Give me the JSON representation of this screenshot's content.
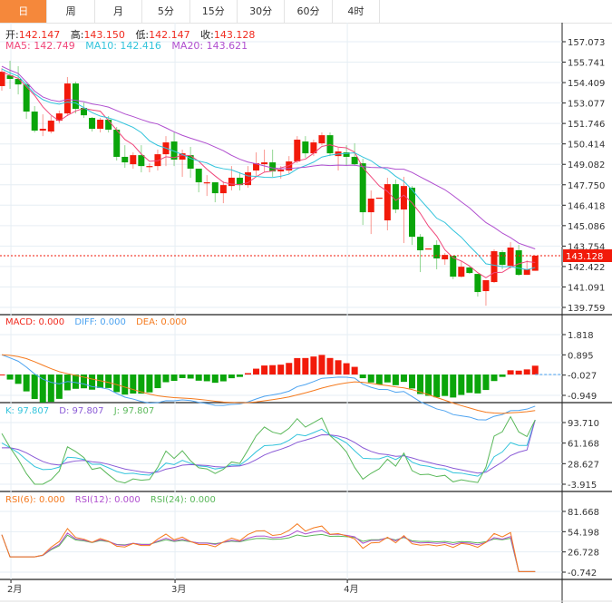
{
  "tabs": [
    {
      "label": "日",
      "active": true
    },
    {
      "label": "周"
    },
    {
      "label": "月"
    },
    {
      "label": "5分"
    },
    {
      "label": "15分"
    },
    {
      "label": "30分"
    },
    {
      "label": "60分"
    },
    {
      "label": "4时"
    }
  ],
  "ohlc": {
    "open_label": "开:",
    "open": "142.147",
    "high_label": "高:",
    "high": "143.150",
    "low_label": "低:",
    "low": "142.147",
    "close_label": "收:",
    "close": "143.128"
  },
  "ma": {
    "ma5": "MA5: 142.749",
    "ma10": "MA10: 142.416",
    "ma20": "MA20: 143.621"
  },
  "macd_legend": {
    "macd": "MACD: 0.000",
    "diff": "DIFF: 0.000",
    "dea": "DEA: 0.000"
  },
  "kdj_legend": {
    "k": "K: 97.807",
    "d": "D: 97.807",
    "j": "J: 97.807"
  },
  "rsi_legend": {
    "rsi6": "RSI(6): 0.000",
    "rsi12": "RSI(12): 0.000",
    "rsi24": "RSI(24): 0.000"
  },
  "colors": {
    "up": "#f21a0a",
    "down": "#0aa50a",
    "ma5": "#f0467a",
    "ma10": "#33c4dc",
    "ma20": "#b04fcf",
    "diff": "#4da3f0",
    "dea": "#f57a1e",
    "k": "#33c4dc",
    "d": "#8a5ad6",
    "j": "#5ab85a",
    "rsi6": "#f57a1e",
    "rsi12": "#b04fcf",
    "rsi24": "#5ab85a",
    "accent": "#f5883b"
  },
  "chart_data": {
    "type": "candlestick",
    "price_axis": [
      "157.073",
      "155.741",
      "154.409",
      "153.077",
      "151.746",
      "150.414",
      "149.082",
      "147.750",
      "146.418",
      "145.086",
      "143.754",
      "142.422",
      "141.091",
      "139.759"
    ],
    "price_range": [
      139.759,
      157.073
    ],
    "last_price": "143.128",
    "macd_axis": [
      "1.818",
      "0.895",
      "-0.027",
      "-0.949"
    ],
    "macd_range": [
      -0.949,
      1.818
    ],
    "kdj_axis": [
      "93.710",
      "61.168",
      "28.627",
      "-3.915"
    ],
    "kdj_range": [
      -3.915,
      93.71
    ],
    "rsi_axis": [
      "81.668",
      "54.198",
      "26.728",
      "-0.742"
    ],
    "rsi_range": [
      -0.742,
      81.668
    ],
    "x_labels": [
      {
        "label": "2月",
        "index": 1
      },
      {
        "label": "3月",
        "index": 21
      },
      {
        "label": "4月",
        "index": 42
      }
    ],
    "candles": [
      [
        154.18,
        155.36,
        153.88,
        155.12
      ],
      [
        154.88,
        155.83,
        154.0,
        154.65
      ],
      [
        154.65,
        155.48,
        153.64,
        154.29
      ],
      [
        154.29,
        154.4,
        152.05,
        152.52
      ],
      [
        152.52,
        152.88,
        151.16,
        151.28
      ],
      [
        151.28,
        152.34,
        150.92,
        151.4
      ],
      [
        151.22,
        152.23,
        151.1,
        151.93
      ],
      [
        151.93,
        152.58,
        151.75,
        152.4
      ],
      [
        152.4,
        154.77,
        152.23,
        154.35
      ],
      [
        154.35,
        154.47,
        152.4,
        152.7
      ],
      [
        152.76,
        153.11,
        152.11,
        152.28
      ],
      [
        152.11,
        152.17,
        151.22,
        151.4
      ],
      [
        151.4,
        152.11,
        151.16,
        151.99
      ],
      [
        151.99,
        152.23,
        151.16,
        151.34
      ],
      [
        151.34,
        151.52,
        149.33,
        149.57
      ],
      [
        149.57,
        150.33,
        148.86,
        149.21
      ],
      [
        149.09,
        149.86,
        148.8,
        149.68
      ],
      [
        149.68,
        150.33,
        148.56,
        148.97
      ],
      [
        148.92,
        149.15,
        148.56,
        148.97
      ],
      [
        148.97,
        150.04,
        148.68,
        149.74
      ],
      [
        149.74,
        150.92,
        148.97,
        150.51
      ],
      [
        150.57,
        151.16,
        148.97,
        149.39
      ],
      [
        149.39,
        150.04,
        148.27,
        149.8
      ],
      [
        149.68,
        150.22,
        148.21,
        148.8
      ],
      [
        148.8,
        148.8,
        147.26,
        147.91
      ],
      [
        147.85,
        148.38,
        147.02,
        147.91
      ],
      [
        147.91,
        147.91,
        146.61,
        147.2
      ],
      [
        147.2,
        147.97,
        146.55,
        147.73
      ],
      [
        147.67,
        148.97,
        147.38,
        148.21
      ],
      [
        148.21,
        148.56,
        147.38,
        147.73
      ],
      [
        147.73,
        148.97,
        147.56,
        148.56
      ],
      [
        148.68,
        149.86,
        148.27,
        149.15
      ],
      [
        149.09,
        150.04,
        148.56,
        149.21
      ],
      [
        149.21,
        150.04,
        148.27,
        148.62
      ],
      [
        148.62,
        148.97,
        148.15,
        148.74
      ],
      [
        148.68,
        149.62,
        148.44,
        149.27
      ],
      [
        149.27,
        150.92,
        149.15,
        150.69
      ],
      [
        150.57,
        150.92,
        149.51,
        149.8
      ],
      [
        149.8,
        150.69,
        149.62,
        150.51
      ],
      [
        150.45,
        151.16,
        150.33,
        150.98
      ],
      [
        150.98,
        151.16,
        149.62,
        149.8
      ],
      [
        149.62,
        150.16,
        148.68,
        149.92
      ],
      [
        149.86,
        150.33,
        148.97,
        149.57
      ],
      [
        149.57,
        150.45,
        148.97,
        149.09
      ],
      [
        149.15,
        149.45,
        145.13,
        145.96
      ],
      [
        145.96,
        147.38,
        144.54,
        146.85
      ],
      [
        146.85,
        146.91,
        146.85,
        146.91
      ],
      [
        145.43,
        148.21,
        144.78,
        147.79
      ],
      [
        147.79,
        148.09,
        145.9,
        146.14
      ],
      [
        146.14,
        148.27,
        143.95,
        147.67
      ],
      [
        147.56,
        147.67,
        143.83,
        144.36
      ],
      [
        144.36,
        144.54,
        142.06,
        143.48
      ],
      [
        143.54,
        143.6,
        143.54,
        143.6
      ],
      [
        143.83,
        144.13,
        142.24,
        142.95
      ],
      [
        142.89,
        143.3,
        142.53,
        143.18
      ],
      [
        143.12,
        143.12,
        141.59,
        141.76
      ],
      [
        141.76,
        142.77,
        141.71,
        142.41
      ],
      [
        142.36,
        142.47,
        141.94,
        142.0
      ],
      [
        141.94,
        141.94,
        140.46,
        140.76
      ],
      [
        140.82,
        141.53,
        139.87,
        141.53
      ],
      [
        141.41,
        143.54,
        141.35,
        143.42
      ],
      [
        143.36,
        143.48,
        142.24,
        142.53
      ],
      [
        142.47,
        144.01,
        142.3,
        143.66
      ],
      [
        143.48,
        143.83,
        141.82,
        141.88
      ],
      [
        141.88,
        142.83,
        141.88,
        142.24
      ],
      [
        142.147,
        143.15,
        142.147,
        143.128
      ]
    ]
  }
}
